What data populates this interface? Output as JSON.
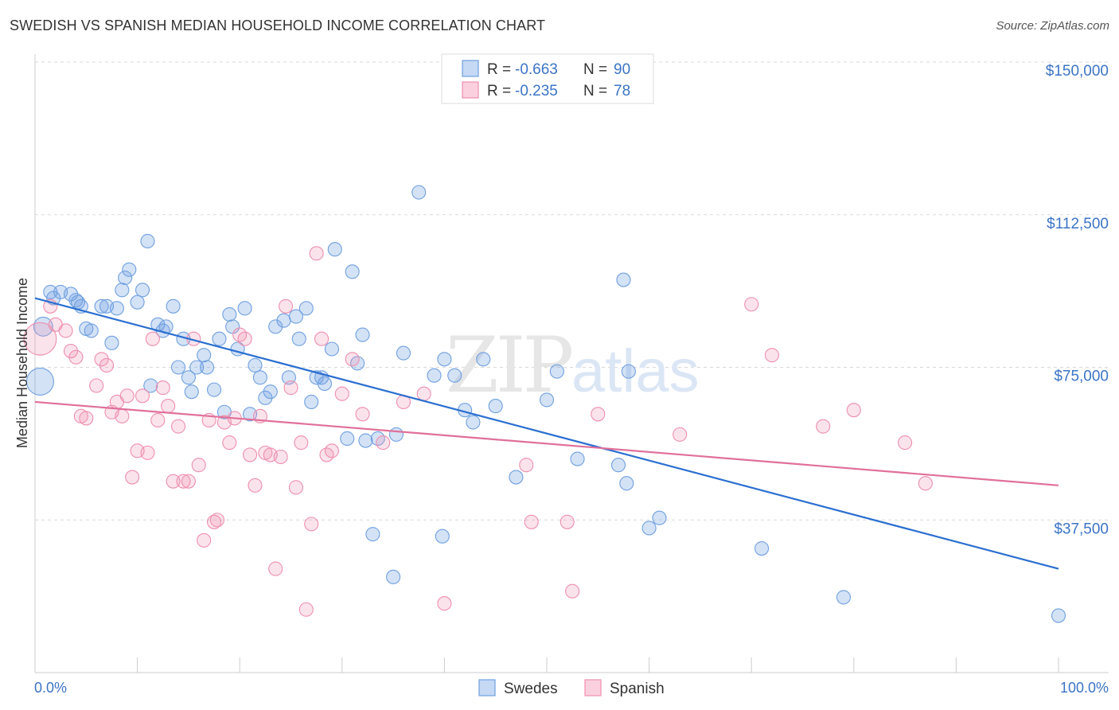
{
  "title": "SWEDISH VS SPANISH MEDIAN HOUSEHOLD INCOME CORRELATION CHART",
  "source": "Source: ZipAtlas.com",
  "watermark": {
    "zip": "ZIP",
    "atlas": "atlas"
  },
  "legend": {
    "rows": [
      {
        "r_label": "R = ",
        "r_value": "-0.663",
        "n_label": "N = ",
        "n_value": "90",
        "color": "#6fa0e0"
      },
      {
        "r_label": "R = ",
        "r_value": "-0.235",
        "n_label": "N = ",
        "n_value": "78",
        "color": "#ee8fae"
      }
    ]
  },
  "bottom_legend": [
    {
      "label": "Swedes",
      "color": "#6fa0e0"
    },
    {
      "label": "Spanish",
      "color": "#ee8fae"
    }
  ],
  "chart_data": {
    "type": "scatter",
    "title": "SWEDISH VS SPANISH MEDIAN HOUSEHOLD INCOME CORRELATION CHART",
    "xlabel": "",
    "ylabel": "Median Household Income",
    "xlim": [
      0,
      100
    ],
    "ylim": [
      0,
      150000
    ],
    "x_tick_labels": [
      "0.0%",
      "100.0%"
    ],
    "y_ticks": [
      37500,
      75000,
      112500,
      150000
    ],
    "y_tick_labels": [
      "$37,500",
      "$75,000",
      "$112,500",
      "$150,000"
    ],
    "grid": true,
    "series": [
      {
        "name": "Swedes",
        "color": "#6fa0e0",
        "line_color": "#2a6fd0",
        "trend": [
          [
            0,
            92000
          ],
          [
            100,
            25500
          ]
        ],
        "points": [
          [
            0.5,
            71500,
            2
          ],
          [
            0.8,
            85000,
            1.4
          ],
          [
            1.5,
            93500,
            1
          ],
          [
            1.8,
            92000,
            1
          ],
          [
            2.5,
            93500,
            1
          ],
          [
            3.5,
            93000,
            1
          ],
          [
            4,
            91500,
            1
          ],
          [
            4.2,
            91000,
            1
          ],
          [
            4.5,
            90000,
            1
          ],
          [
            5,
            84500,
            1
          ],
          [
            5.5,
            84000,
            1
          ],
          [
            6.5,
            90000,
            1
          ],
          [
            7,
            90000,
            1
          ],
          [
            7.5,
            81000,
            1
          ],
          [
            8,
            89500,
            1
          ],
          [
            8.5,
            94000,
            1
          ],
          [
            8.8,
            97000,
            1
          ],
          [
            9.2,
            99000,
            1
          ],
          [
            10,
            91000,
            1
          ],
          [
            10.5,
            94000,
            1
          ],
          [
            11,
            106000,
            1
          ],
          [
            11.3,
            70500,
            1
          ],
          [
            12,
            85500,
            1
          ],
          [
            12.5,
            84000,
            1
          ],
          [
            12.8,
            85000,
            1
          ],
          [
            13.5,
            90000,
            1
          ],
          [
            14,
            75000,
            1
          ],
          [
            14.5,
            82000,
            1
          ],
          [
            15,
            72500,
            1
          ],
          [
            15.3,
            69000,
            1
          ],
          [
            15.8,
            75000,
            1
          ],
          [
            16.5,
            78000,
            1
          ],
          [
            16.8,
            75000,
            1
          ],
          [
            17.5,
            69500,
            1
          ],
          [
            18,
            82000,
            1
          ],
          [
            18.5,
            64000,
            1
          ],
          [
            19,
            88000,
            1
          ],
          [
            19.3,
            85000,
            1
          ],
          [
            19.8,
            79500,
            1
          ],
          [
            20.5,
            89500,
            1
          ],
          [
            21,
            63500,
            1
          ],
          [
            21.5,
            75500,
            1
          ],
          [
            22,
            72500,
            1
          ],
          [
            22.5,
            67500,
            1
          ],
          [
            23,
            69000,
            1
          ],
          [
            23.5,
            85000,
            1
          ],
          [
            24.3,
            86500,
            1
          ],
          [
            24.8,
            72500,
            1
          ],
          [
            25.5,
            87500,
            1
          ],
          [
            25.8,
            82000,
            1
          ],
          [
            26.5,
            89500,
            1
          ],
          [
            27,
            66500,
            1
          ],
          [
            27.5,
            72500,
            1
          ],
          [
            28,
            72500,
            1
          ],
          [
            28.3,
            71000,
            1
          ],
          [
            29,
            79500,
            1
          ],
          [
            29.3,
            104000,
            1
          ],
          [
            30.5,
            57500,
            1
          ],
          [
            31,
            98500,
            1
          ],
          [
            31.5,
            76000,
            1
          ],
          [
            32,
            83000,
            1
          ],
          [
            32.3,
            57000,
            1
          ],
          [
            33,
            34000,
            1
          ],
          [
            33.5,
            57500,
            1
          ],
          [
            35,
            23500,
            1
          ],
          [
            35.3,
            58500,
            1
          ],
          [
            36,
            78500,
            1
          ],
          [
            37.5,
            118000,
            1
          ],
          [
            39,
            73000,
            1
          ],
          [
            39.8,
            33500,
            1
          ],
          [
            40,
            77000,
            1
          ],
          [
            41,
            73000,
            1
          ],
          [
            42,
            64500,
            1
          ],
          [
            42.8,
            61500,
            1
          ],
          [
            43.8,
            77000,
            1
          ],
          [
            45,
            65500,
            1
          ],
          [
            47,
            48000,
            1
          ],
          [
            50,
            67000,
            1
          ],
          [
            51,
            74000,
            1
          ],
          [
            53,
            52500,
            1
          ],
          [
            57,
            51000,
            1
          ],
          [
            57.5,
            96500,
            1
          ],
          [
            57.8,
            46500,
            1
          ],
          [
            58,
            74000,
            1
          ],
          [
            60,
            35500,
            1
          ],
          [
            61,
            38000,
            1
          ],
          [
            71,
            30500,
            1
          ],
          [
            79,
            18500,
            1
          ],
          [
            100,
            14000,
            1
          ]
        ]
      },
      {
        "name": "Spanish",
        "color": "#ee8fae",
        "line_color": "#e0709a",
        "trend": [
          [
            0,
            66500
          ],
          [
            100,
            46000
          ]
        ],
        "points": [
          [
            0.5,
            82000,
            2.4
          ],
          [
            1.5,
            90000,
            1
          ],
          [
            2,
            85500,
            1
          ],
          [
            3,
            84000,
            1
          ],
          [
            3.5,
            79000,
            1
          ],
          [
            4,
            77500,
            1
          ],
          [
            4.5,
            63000,
            1
          ],
          [
            5,
            62500,
            1
          ],
          [
            6,
            70500,
            1
          ],
          [
            6.5,
            77000,
            1
          ],
          [
            7,
            75500,
            1
          ],
          [
            7.5,
            64000,
            1
          ],
          [
            8,
            66500,
            1
          ],
          [
            8.5,
            63000,
            1
          ],
          [
            9,
            68000,
            1
          ],
          [
            9.5,
            48000,
            1
          ],
          [
            10,
            54500,
            1
          ],
          [
            10.5,
            68000,
            1
          ],
          [
            11,
            54000,
            1
          ],
          [
            11.5,
            82000,
            1
          ],
          [
            12,
            62000,
            1
          ],
          [
            12.5,
            70000,
            1
          ],
          [
            13,
            65500,
            1
          ],
          [
            13.5,
            47000,
            1
          ],
          [
            14,
            60500,
            1
          ],
          [
            14.5,
            47000,
            1
          ],
          [
            15,
            47000,
            1
          ],
          [
            15.5,
            82000,
            1
          ],
          [
            16,
            51000,
            1
          ],
          [
            16.5,
            32500,
            1
          ],
          [
            17,
            62000,
            1
          ],
          [
            17.5,
            37000,
            1
          ],
          [
            17.8,
            37500,
            1
          ],
          [
            18.5,
            61500,
            1
          ],
          [
            19,
            56500,
            1
          ],
          [
            19.5,
            62500,
            1
          ],
          [
            20,
            83000,
            1
          ],
          [
            20.5,
            82000,
            1
          ],
          [
            21,
            53500,
            1
          ],
          [
            21.5,
            46000,
            1
          ],
          [
            22,
            63000,
            1
          ],
          [
            22.5,
            54000,
            1
          ],
          [
            23,
            53500,
            1
          ],
          [
            23.5,
            25500,
            1
          ],
          [
            24,
            53000,
            1
          ],
          [
            24.5,
            90000,
            1
          ],
          [
            25,
            70000,
            1
          ],
          [
            25.5,
            45500,
            1
          ],
          [
            26,
            56500,
            1
          ],
          [
            26.5,
            15500,
            1
          ],
          [
            27,
            36500,
            1
          ],
          [
            27.5,
            103000,
            1
          ],
          [
            28,
            82000,
            1
          ],
          [
            28.5,
            53500,
            1
          ],
          [
            29,
            54500,
            1
          ],
          [
            30,
            68500,
            1
          ],
          [
            31,
            77000,
            1
          ],
          [
            32,
            63500,
            1
          ],
          [
            34,
            56500,
            1
          ],
          [
            36,
            66500,
            1
          ],
          [
            38,
            68500,
            1
          ],
          [
            40,
            17000,
            1
          ],
          [
            48,
            51000,
            1
          ],
          [
            48.5,
            37000,
            1
          ],
          [
            52,
            37000,
            1
          ],
          [
            52.5,
            20000,
            1
          ],
          [
            55,
            63500,
            1
          ],
          [
            63,
            58500,
            1
          ],
          [
            70,
            90500,
            1
          ],
          [
            72,
            78000,
            1
          ],
          [
            77,
            60500,
            1
          ],
          [
            80,
            64500,
            1
          ],
          [
            85,
            56500,
            1
          ],
          [
            87,
            46500,
            1
          ]
        ]
      }
    ]
  }
}
